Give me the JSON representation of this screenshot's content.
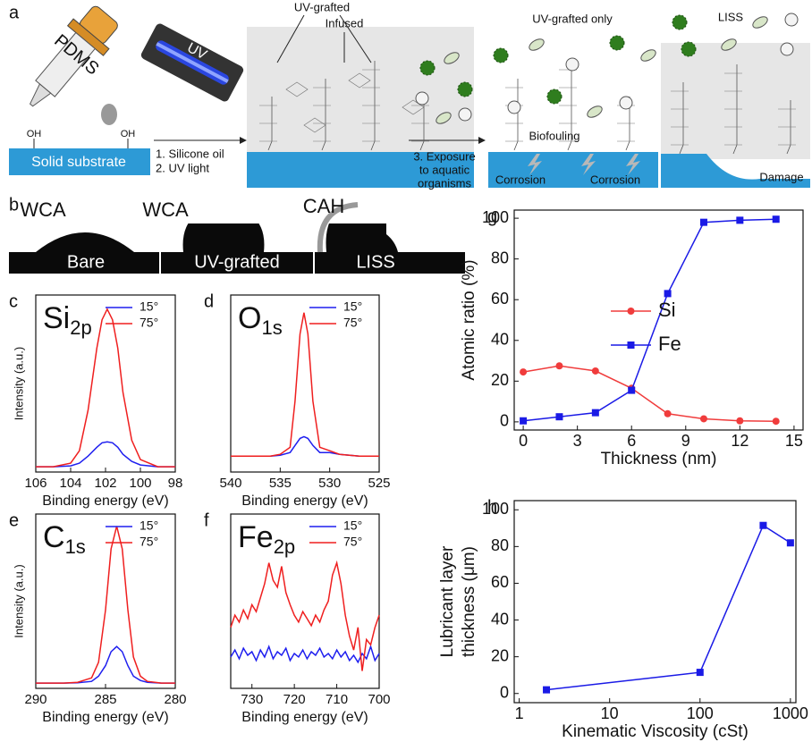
{
  "panel_a": {
    "label": "a",
    "dropper": "PDMS",
    "lamp": "UV",
    "substrate": "Solid substrate",
    "hydroxyl": [
      "OH",
      "OH"
    ],
    "step_1": [
      "1. Silicone oil",
      "2. UV light"
    ],
    "grafted": "UV-grafted",
    "infused": "Infused",
    "step_3": [
      "3. Exposure",
      "to aquatic",
      "organisms"
    ],
    "uv_only_title": "UV-grafted only",
    "biofouling": "Biofouling",
    "corrosion": [
      "Corrosion",
      "Corrosion"
    ],
    "liss_title": "LISS",
    "damage": "Damage"
  },
  "panel_b": {
    "label": "b",
    "measurements": [
      "WCA",
      "WCA",
      "CAH"
    ],
    "samples": [
      "Bare",
      "UV-grafted",
      "LISS"
    ]
  },
  "chart_data": [
    {
      "type": "line",
      "label": "c",
      "title": "Si",
      "title_subscript": "2p",
      "xlabel": "Binding energy (eV)",
      "ylabel": "Intensity (a.u.)",
      "x": [
        106,
        105,
        104,
        103.5,
        103,
        102.5,
        102.2,
        101.9,
        101.6,
        101.3,
        101,
        100.5,
        100,
        99,
        98
      ],
      "xlim": [
        106,
        98
      ],
      "xticks": [
        106,
        104,
        102,
        100,
        98
      ],
      "ylim": [
        0,
        100
      ],
      "legend": "upper right",
      "series": [
        {
          "name": "15°",
          "color": "#1f1fef",
          "values": [
            3,
            3,
            3.5,
            5,
            9,
            14,
            16.5,
            17,
            16.5,
            14,
            10,
            6,
            4,
            3,
            3
          ]
        },
        {
          "name": "75°",
          "color": "#ef1f1f",
          "values": [
            3,
            3,
            5,
            12,
            35,
            70,
            86,
            92,
            86,
            70,
            45,
            18,
            7,
            3,
            3
          ]
        }
      ]
    },
    {
      "type": "line",
      "label": "d",
      "title": "O",
      "title_subscript": "1s",
      "xlabel": "Binding energy (eV)",
      "x": [
        540,
        538,
        536,
        535,
        534,
        533.5,
        533,
        532.6,
        532.2,
        531.7,
        531,
        530,
        529,
        527,
        525
      ],
      "xlim": [
        540,
        525
      ],
      "xticks": [
        540,
        535,
        530,
        525
      ],
      "ylim": [
        0,
        100
      ],
      "legend": "upper right",
      "series": [
        {
          "name": "15°",
          "color": "#1f1fef",
          "values": [
            9,
            9,
            9,
            9.5,
            11,
            15,
            19,
            20,
            19,
            15,
            11,
            11,
            10,
            9,
            9
          ]
        },
        {
          "name": "75°",
          "color": "#ef1f1f",
          "values": [
            9,
            9,
            9,
            10,
            14,
            40,
            78,
            90,
            78,
            40,
            14,
            12,
            10,
            9,
            9
          ]
        }
      ]
    },
    {
      "type": "line",
      "label": "e",
      "title": "C",
      "title_subscript": "1s",
      "xlabel": "Binding energy (eV)",
      "ylabel": "Intensity (a.u.)",
      "x": [
        290,
        288,
        287,
        286,
        285.5,
        285,
        284.6,
        284.2,
        283.8,
        283.4,
        283,
        282.5,
        282,
        281,
        280
      ],
      "xlim": [
        290,
        280
      ],
      "xticks": [
        290,
        285,
        280
      ],
      "ylim": [
        0,
        100
      ],
      "legend": "upper right",
      "series": [
        {
          "name": "15°",
          "color": "#1f1fef",
          "values": [
            3,
            3,
            3.2,
            4,
            7,
            13,
            21,
            24,
            21,
            13,
            7,
            4.5,
            3.5,
            3,
            3
          ]
        },
        {
          "name": "75°",
          "color": "#ef1f1f",
          "values": [
            3,
            3,
            3.5,
            6,
            15,
            45,
            80,
            93,
            80,
            45,
            18,
            7,
            4,
            3,
            3
          ]
        }
      ]
    },
    {
      "type": "line",
      "label": "f",
      "title": "Fe",
      "title_subscript": "2p",
      "xlabel": "Binding energy (eV)",
      "x": [
        735,
        734,
        733,
        732,
        731,
        730,
        729,
        728,
        727,
        726,
        725,
        724,
        723,
        722,
        721,
        720,
        719,
        718,
        717,
        716,
        715,
        714,
        713,
        712,
        711,
        710,
        709,
        708,
        707,
        706,
        705,
        704,
        703,
        702,
        701,
        700
      ],
      "xlim": [
        735,
        700
      ],
      "xticks": [
        730,
        720,
        710,
        700
      ],
      "ylim": [
        0,
        100
      ],
      "legend": "upper right",
      "series": [
        {
          "name": "15°",
          "color": "#1f1fef",
          "values": [
            18,
            22,
            17,
            23,
            19,
            21,
            16,
            22,
            18,
            24,
            17,
            21,
            19,
            23,
            16,
            20,
            18,
            22,
            17,
            21,
            19,
            23,
            18,
            20,
            17,
            22,
            18,
            21,
            16,
            19,
            15,
            20,
            17,
            24,
            16,
            20
          ]
        },
        {
          "name": "75°",
          "color": "#ef1f1f",
          "values": [
            35,
            42,
            38,
            45,
            40,
            48,
            44,
            52,
            60,
            72,
            62,
            58,
            70,
            55,
            48,
            42,
            38,
            44,
            40,
            36,
            42,
            38,
            45,
            50,
            65,
            72,
            60,
            42,
            30,
            22,
            35,
            10,
            28,
            25,
            35,
            42
          ]
        }
      ]
    },
    {
      "type": "line",
      "label": "g",
      "xlabel": "Thickness (nm)",
      "ylabel": "Atomic ratio (%)",
      "x": [
        0,
        2,
        4,
        6,
        8,
        10,
        12,
        14
      ],
      "xlim": [
        -0.5,
        15.5
      ],
      "xticks": [
        0,
        3,
        6,
        9,
        12,
        15
      ],
      "ylim": [
        -4,
        104
      ],
      "yticks": [
        0,
        20,
        40,
        60,
        80,
        100
      ],
      "legend": "center right",
      "series": [
        {
          "name": "Si",
          "color": "#f03c3c",
          "marker": "circle",
          "values": [
            24.5,
            27.5,
            25,
            16.5,
            4,
            1.5,
            0.5,
            0.3
          ]
        },
        {
          "name": "Fe",
          "color": "#1a1ae6",
          "marker": "square",
          "values": [
            0.5,
            2.5,
            4.5,
            15.5,
            63,
            98,
            99,
            99.5
          ]
        }
      ]
    },
    {
      "type": "line",
      "label": "h",
      "xlabel": "Kinematic Viscosity (cSt)",
      "ylabel": [
        "Lubricant layer",
        "thickness (μm)"
      ],
      "x": [
        2,
        100,
        500,
        1000
      ],
      "xscale": "log",
      "xlim": [
        0.88,
        1150
      ],
      "xticks": [
        1,
        10,
        100,
        1000
      ],
      "ylim": [
        -5,
        105
      ],
      "yticks": [
        0,
        20,
        40,
        60,
        80,
        100
      ],
      "series": [
        {
          "color": "#1a1ae6",
          "marker": "square",
          "values": [
            2,
            11.5,
            91.5,
            82
          ]
        }
      ]
    }
  ]
}
